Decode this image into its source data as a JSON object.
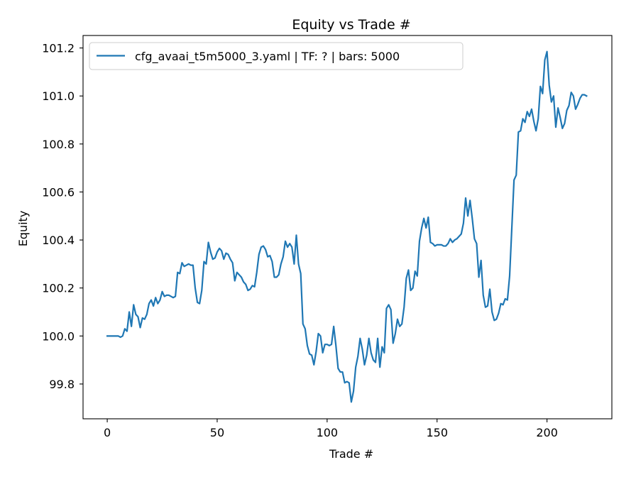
{
  "chart_data": {
    "type": "line",
    "title": "Equity vs Trade #",
    "xlabel": "Trade #",
    "ylabel": "Equity",
    "xlim": [
      -11,
      229.5
    ],
    "ylim": [
      99.655,
      101.252
    ],
    "xticks": [
      0,
      50,
      100,
      150,
      200
    ],
    "xtick_labels": [
      "0",
      "50",
      "100",
      "150",
      "200"
    ],
    "yticks": [
      99.8,
      100.0,
      100.2,
      100.4,
      100.6,
      100.8,
      101.0,
      101.2
    ],
    "ytick_labels": [
      "99.8",
      "100.0",
      "100.2",
      "100.4",
      "100.6",
      "100.8",
      "101.0",
      "101.2"
    ],
    "grid": false,
    "legend_position": "upper-left",
    "series": [
      {
        "name": "cfg_avaai_t5m5000_3.yaml | TF: ? | bars: 5000",
        "color": "#1f77b4",
        "x": [
          0,
          1,
          2,
          3,
          4,
          5,
          6,
          7,
          8,
          9,
          10,
          11,
          12,
          13,
          14,
          15,
          16,
          17,
          18,
          19,
          20,
          21,
          22,
          23,
          24,
          25,
          26,
          27,
          28,
          29,
          30,
          31,
          32,
          33,
          34,
          35,
          36,
          37,
          38,
          39,
          40,
          41,
          42,
          43,
          44,
          45,
          46,
          47,
          48,
          49,
          50,
          51,
          52,
          53,
          54,
          55,
          56,
          57,
          58,
          59,
          60,
          61,
          62,
          63,
          64,
          65,
          66,
          67,
          68,
          69,
          70,
          71,
          72,
          73,
          74,
          75,
          76,
          77,
          78,
          79,
          80,
          81,
          82,
          83,
          84,
          85,
          86,
          87,
          88,
          89,
          90,
          91,
          92,
          93,
          94,
          95,
          96,
          97,
          98,
          99,
          100,
          101,
          102,
          103,
          104,
          105,
          106,
          107,
          108,
          109,
          110,
          111,
          112,
          113,
          114,
          115,
          116,
          117,
          118,
          119,
          120,
          121,
          122,
          123,
          124,
          125,
          126,
          127,
          128,
          129,
          130,
          131,
          132,
          133,
          134,
          135,
          136,
          137,
          138,
          139,
          140,
          141,
          142,
          143,
          144,
          145,
          146,
          147,
          148,
          149,
          150,
          151,
          152,
          153,
          154,
          155,
          156,
          157,
          158,
          159,
          160,
          161,
          162,
          163,
          164,
          165,
          166,
          167,
          168,
          169,
          170,
          171,
          172,
          173,
          174,
          175,
          176,
          177,
          178,
          179,
          180,
          181,
          182,
          183,
          184,
          185,
          186,
          187,
          188,
          189,
          190,
          191,
          192,
          193,
          194,
          195,
          196,
          197,
          198,
          199,
          200,
          201,
          202,
          203,
          204,
          205,
          206,
          207,
          208,
          209,
          210,
          211,
          212,
          213,
          214,
          215,
          216,
          217,
          218
        ],
        "y": [
          100.0,
          100.0,
          100.0,
          100.0,
          100.0,
          100.0,
          99.995,
          100.0,
          100.03,
          100.02,
          100.1,
          100.04,
          100.13,
          100.09,
          100.08,
          100.035,
          100.075,
          100.07,
          100.09,
          100.135,
          100.15,
          100.125,
          100.16,
          100.135,
          100.15,
          100.185,
          100.165,
          100.17,
          100.17,
          100.165,
          100.16,
          100.165,
          100.265,
          100.26,
          100.305,
          100.29,
          100.295,
          100.3,
          100.295,
          100.295,
          100.2,
          100.14,
          100.135,
          100.19,
          100.31,
          100.3,
          100.39,
          100.35,
          100.32,
          100.325,
          100.35,
          100.365,
          100.355,
          100.32,
          100.345,
          100.34,
          100.32,
          100.305,
          100.23,
          100.265,
          100.255,
          100.245,
          100.225,
          100.215,
          100.19,
          100.195,
          100.21,
          100.205,
          100.265,
          100.34,
          100.37,
          100.375,
          100.36,
          100.33,
          100.335,
          100.31,
          100.245,
          100.245,
          100.255,
          100.3,
          100.33,
          100.395,
          100.37,
          100.385,
          100.37,
          100.3,
          100.42,
          100.3,
          100.26,
          100.05,
          100.03,
          99.96,
          99.925,
          99.92,
          99.88,
          99.935,
          100.01,
          100.0,
          99.93,
          99.965,
          99.965,
          99.96,
          99.965,
          100.04,
          99.96,
          99.865,
          99.85,
          99.85,
          99.805,
          99.81,
          99.805,
          99.725,
          99.77,
          99.87,
          99.915,
          99.99,
          99.945,
          99.88,
          99.92,
          99.99,
          99.93,
          99.9,
          99.89,
          99.99,
          99.87,
          99.955,
          99.93,
          100.115,
          100.13,
          100.11,
          99.97,
          100.01,
          100.07,
          100.04,
          100.05,
          100.12,
          100.24,
          100.275,
          100.19,
          100.2,
          100.27,
          100.25,
          100.395,
          100.45,
          100.49,
          100.45,
          100.495,
          100.39,
          100.385,
          100.375,
          100.38,
          100.38,
          100.38,
          100.375,
          100.375,
          100.385,
          100.405,
          100.39,
          100.4,
          100.405,
          100.415,
          100.425,
          100.47,
          100.575,
          100.5,
          100.565,
          100.49,
          100.405,
          100.385,
          100.245,
          100.315,
          100.17,
          100.12,
          100.125,
          100.195,
          100.1,
          100.065,
          100.07,
          100.095,
          100.135,
          100.13,
          100.155,
          100.15,
          100.25,
          100.45,
          100.65,
          100.67,
          100.85,
          100.855,
          100.905,
          100.89,
          100.935,
          100.915,
          100.945,
          100.895,
          100.855,
          100.905,
          101.04,
          101.01,
          101.15,
          101.185,
          101.045,
          100.975,
          101.0,
          100.87,
          100.95,
          100.91,
          100.865,
          100.885,
          100.94,
          100.96,
          101.015,
          101.0,
          100.945,
          100.965,
          100.99,
          101.005,
          101.005,
          101.0
        ]
      }
    ]
  }
}
